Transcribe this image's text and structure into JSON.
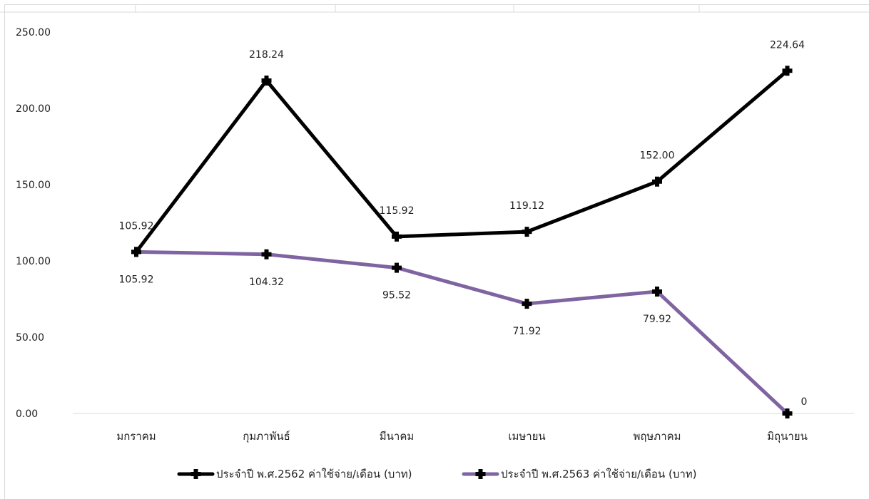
{
  "chart_data": {
    "type": "line",
    "title": "",
    "xlabel": "",
    "ylabel": "",
    "categories": [
      "มกราคม",
      "กุมภาพันธ์",
      "มีนาคม",
      "เมษายน",
      "พฤษภาคม",
      "มิถุนายน"
    ],
    "ylim": [
      0,
      250
    ],
    "yticks": [
      "0.00",
      "50.00",
      "100.00",
      "150.00",
      "200.00",
      "250.00"
    ],
    "grid": false,
    "legend_position": "bottom",
    "series": [
      {
        "name": "ประจำปี พ.ศ.2562  ค่าใช้จ่าย/เดือน (บาท)",
        "color": "#000000",
        "values": [
          105.92,
          218.24,
          115.92,
          119.12,
          152.0,
          224.64
        ],
        "labels": [
          "105.92",
          "218.24",
          "115.92",
          "119.12",
          "152.00",
          "224.64"
        ]
      },
      {
        "name": "ประจำปี พ.ศ.2563  ค่าใช้จ่าย/เดือน (บาท)",
        "color": "#8064a2",
        "values": [
          105.92,
          104.32,
          95.52,
          71.92,
          79.92,
          0
        ],
        "labels": [
          "105.92",
          "104.32",
          "95.52",
          "71.92",
          "79.92",
          "0"
        ]
      }
    ]
  }
}
